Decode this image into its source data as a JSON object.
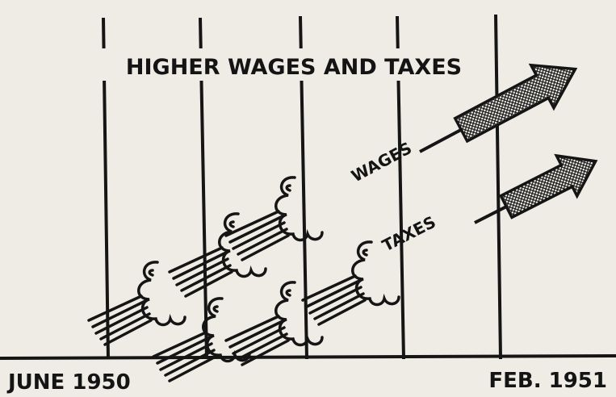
{
  "header": {
    "title": "HIGHER WAGES AND TAXES"
  },
  "arrows": [
    {
      "label": "WAGES"
    },
    {
      "label": "TAXES"
    }
  ],
  "timeline": {
    "start": "JUNE 1950",
    "end": "FEB. 1951"
  }
}
